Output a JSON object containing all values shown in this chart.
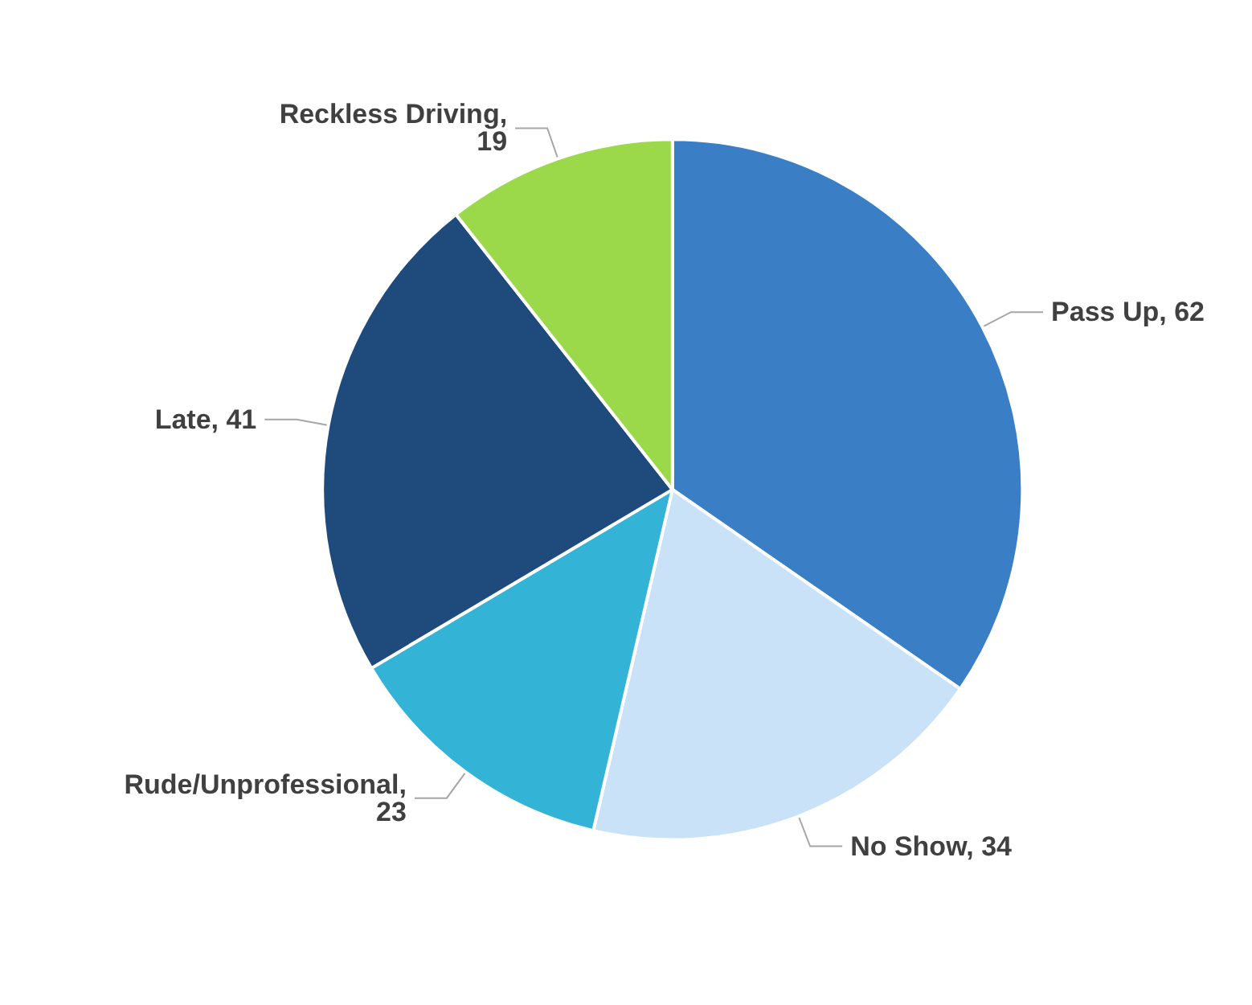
{
  "chart_data": {
    "type": "pie",
    "categories": [
      null,
      null,
      null,
      null,
      null
    ],
    "values": [
      62,
      34,
      23,
      41,
      19
    ],
    "value_labels": [
      "Pass Up, 62",
      "No Show, 34",
      "Rude/Unprofessional, 23",
      "Late, 41",
      "Reckless Driving, 19"
    ],
    "colors": [
      "#3a7fc6",
      "#c9e2f7",
      "#33b3d6",
      "#1f4a7c",
      "#9bd84a"
    ]
  }
}
